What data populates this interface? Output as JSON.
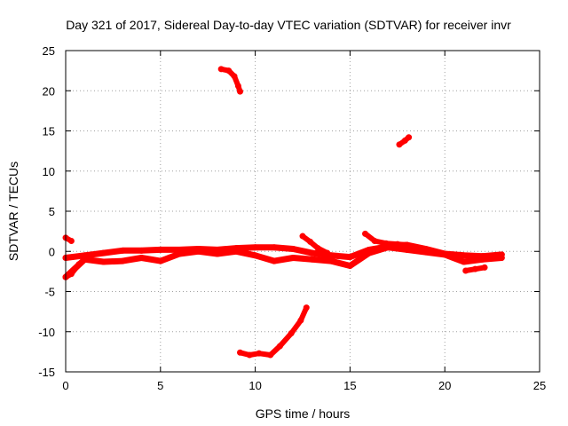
{
  "chart_data": {
    "type": "scatter",
    "title": "Day 321 of 2017, Sidereal Day-to-day VTEC variation (SDTVAR) for receiver invr",
    "xlabel": "GPS time / hours",
    "ylabel": "SDTVAR / TECUs",
    "xlim": [
      0,
      25
    ],
    "ylim": [
      -15,
      25
    ],
    "xticks": [
      0,
      5,
      10,
      15,
      20,
      25
    ],
    "yticks": [
      -15,
      -10,
      -5,
      0,
      5,
      10,
      15,
      20,
      25
    ],
    "xtick_labels": [
      "0",
      "5",
      "10",
      "15",
      "20",
      "25"
    ],
    "ytick_labels": [
      "-15",
      "-10",
      "-5",
      "0",
      "5",
      "10",
      "15",
      "20",
      "25"
    ],
    "grid": true,
    "marker_color": "#ff0000",
    "series": [
      {
        "name": "main-band-upper",
        "x": [
          0,
          1,
          2,
          3,
          4,
          5,
          6,
          7,
          8,
          9,
          10,
          11,
          12,
          13,
          14,
          15,
          16,
          17,
          18,
          19,
          20,
          21,
          22,
          23
        ],
        "y": [
          -0.8,
          -0.5,
          -0.2,
          0.1,
          0.1,
          0.2,
          0.2,
          0.3,
          0.2,
          0.4,
          0.5,
          0.5,
          0.3,
          -0.2,
          -0.5,
          -0.7,
          0.2,
          0.6,
          0.8,
          0.3,
          -0.3,
          -0.5,
          -0.6,
          -0.4
        ]
      },
      {
        "name": "main-band-lower",
        "x": [
          0,
          1,
          2,
          3,
          4,
          5,
          6,
          7,
          8,
          9,
          10,
          11,
          12,
          13,
          14,
          15,
          16,
          17,
          18,
          19,
          20,
          21,
          22,
          23
        ],
        "y": [
          -3.2,
          -1.0,
          -1.3,
          -1.2,
          -0.8,
          -1.2,
          -0.3,
          0.0,
          -0.3,
          0.0,
          -0.5,
          -1.2,
          -0.8,
          -1.0,
          -1.2,
          -1.8,
          -0.2,
          0.5,
          0.2,
          -0.1,
          -0.4,
          -1.3,
          -1.0,
          -0.8
        ]
      },
      {
        "name": "arc-high",
        "x": [
          8.2,
          8.6,
          8.9,
          9.1,
          9.2
        ],
        "y": [
          22.7,
          22.5,
          21.8,
          20.6,
          19.9
        ]
      },
      {
        "name": "arc-mid",
        "x": [
          17.6,
          17.9,
          18.1
        ],
        "y": [
          13.3,
          13.8,
          14.2
        ]
      },
      {
        "name": "arc-low",
        "x": [
          9.2,
          9.7,
          10.2,
          10.8,
          11.3,
          11.9,
          12.4,
          12.7
        ],
        "y": [
          -12.6,
          -12.9,
          -12.7,
          -12.9,
          -11.8,
          -10.2,
          -8.6,
          -7.0
        ]
      },
      {
        "name": "tail-start-up",
        "x": [
          0,
          0.3
        ],
        "y": [
          1.7,
          1.3
        ]
      },
      {
        "name": "tail-start-down",
        "x": [
          0,
          0.3,
          0.7
        ],
        "y": [
          -3.2,
          -2.8,
          -1.6
        ]
      },
      {
        "name": "tail-1245",
        "x": [
          12.5,
          12.9,
          13.3,
          13.8
        ],
        "y": [
          1.9,
          1.2,
          0.4,
          -0.2
        ]
      },
      {
        "name": "tail-1570",
        "x": [
          15.8,
          16.3,
          16.9,
          17.5,
          18.0
        ],
        "y": [
          2.2,
          1.3,
          1.0,
          0.9,
          0.8
        ]
      },
      {
        "name": "tail-2130",
        "x": [
          21.1,
          21.6,
          22.1
        ],
        "y": [
          -2.4,
          -2.2,
          -2.0
        ]
      }
    ]
  }
}
